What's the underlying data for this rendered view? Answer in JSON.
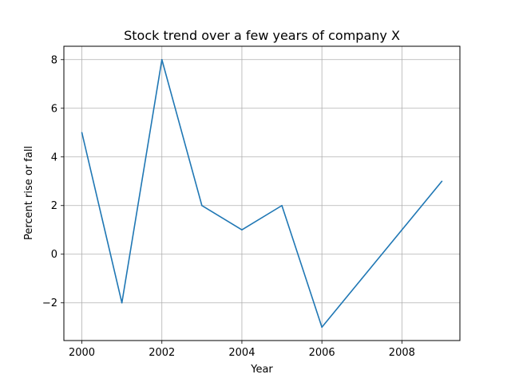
{
  "chart_data": {
    "type": "line",
    "title": "Stock trend over a few years of company X",
    "xlabel": "Year",
    "ylabel": "Percent rise or fall",
    "xlim": [
      1999.55,
      2009.45
    ],
    "ylim": [
      -3.55,
      8.55
    ],
    "x_ticks": [
      2000,
      2002,
      2004,
      2006,
      2008
    ],
    "y_ticks": [
      -2,
      0,
      2,
      4,
      6,
      8
    ],
    "y_tick_labels": [
      "−2",
      "0",
      "2",
      "4",
      "6",
      "8"
    ],
    "grid": true,
    "series": [
      {
        "x": [
          2000,
          2001,
          2002,
          2003,
          2004,
          2005,
          2006,
          2007,
          2008,
          2009
        ],
        "values": [
          5,
          -2,
          8,
          2,
          1,
          2,
          -3,
          -1,
          1,
          3
        ],
        "color": "#1f77b4"
      }
    ]
  }
}
